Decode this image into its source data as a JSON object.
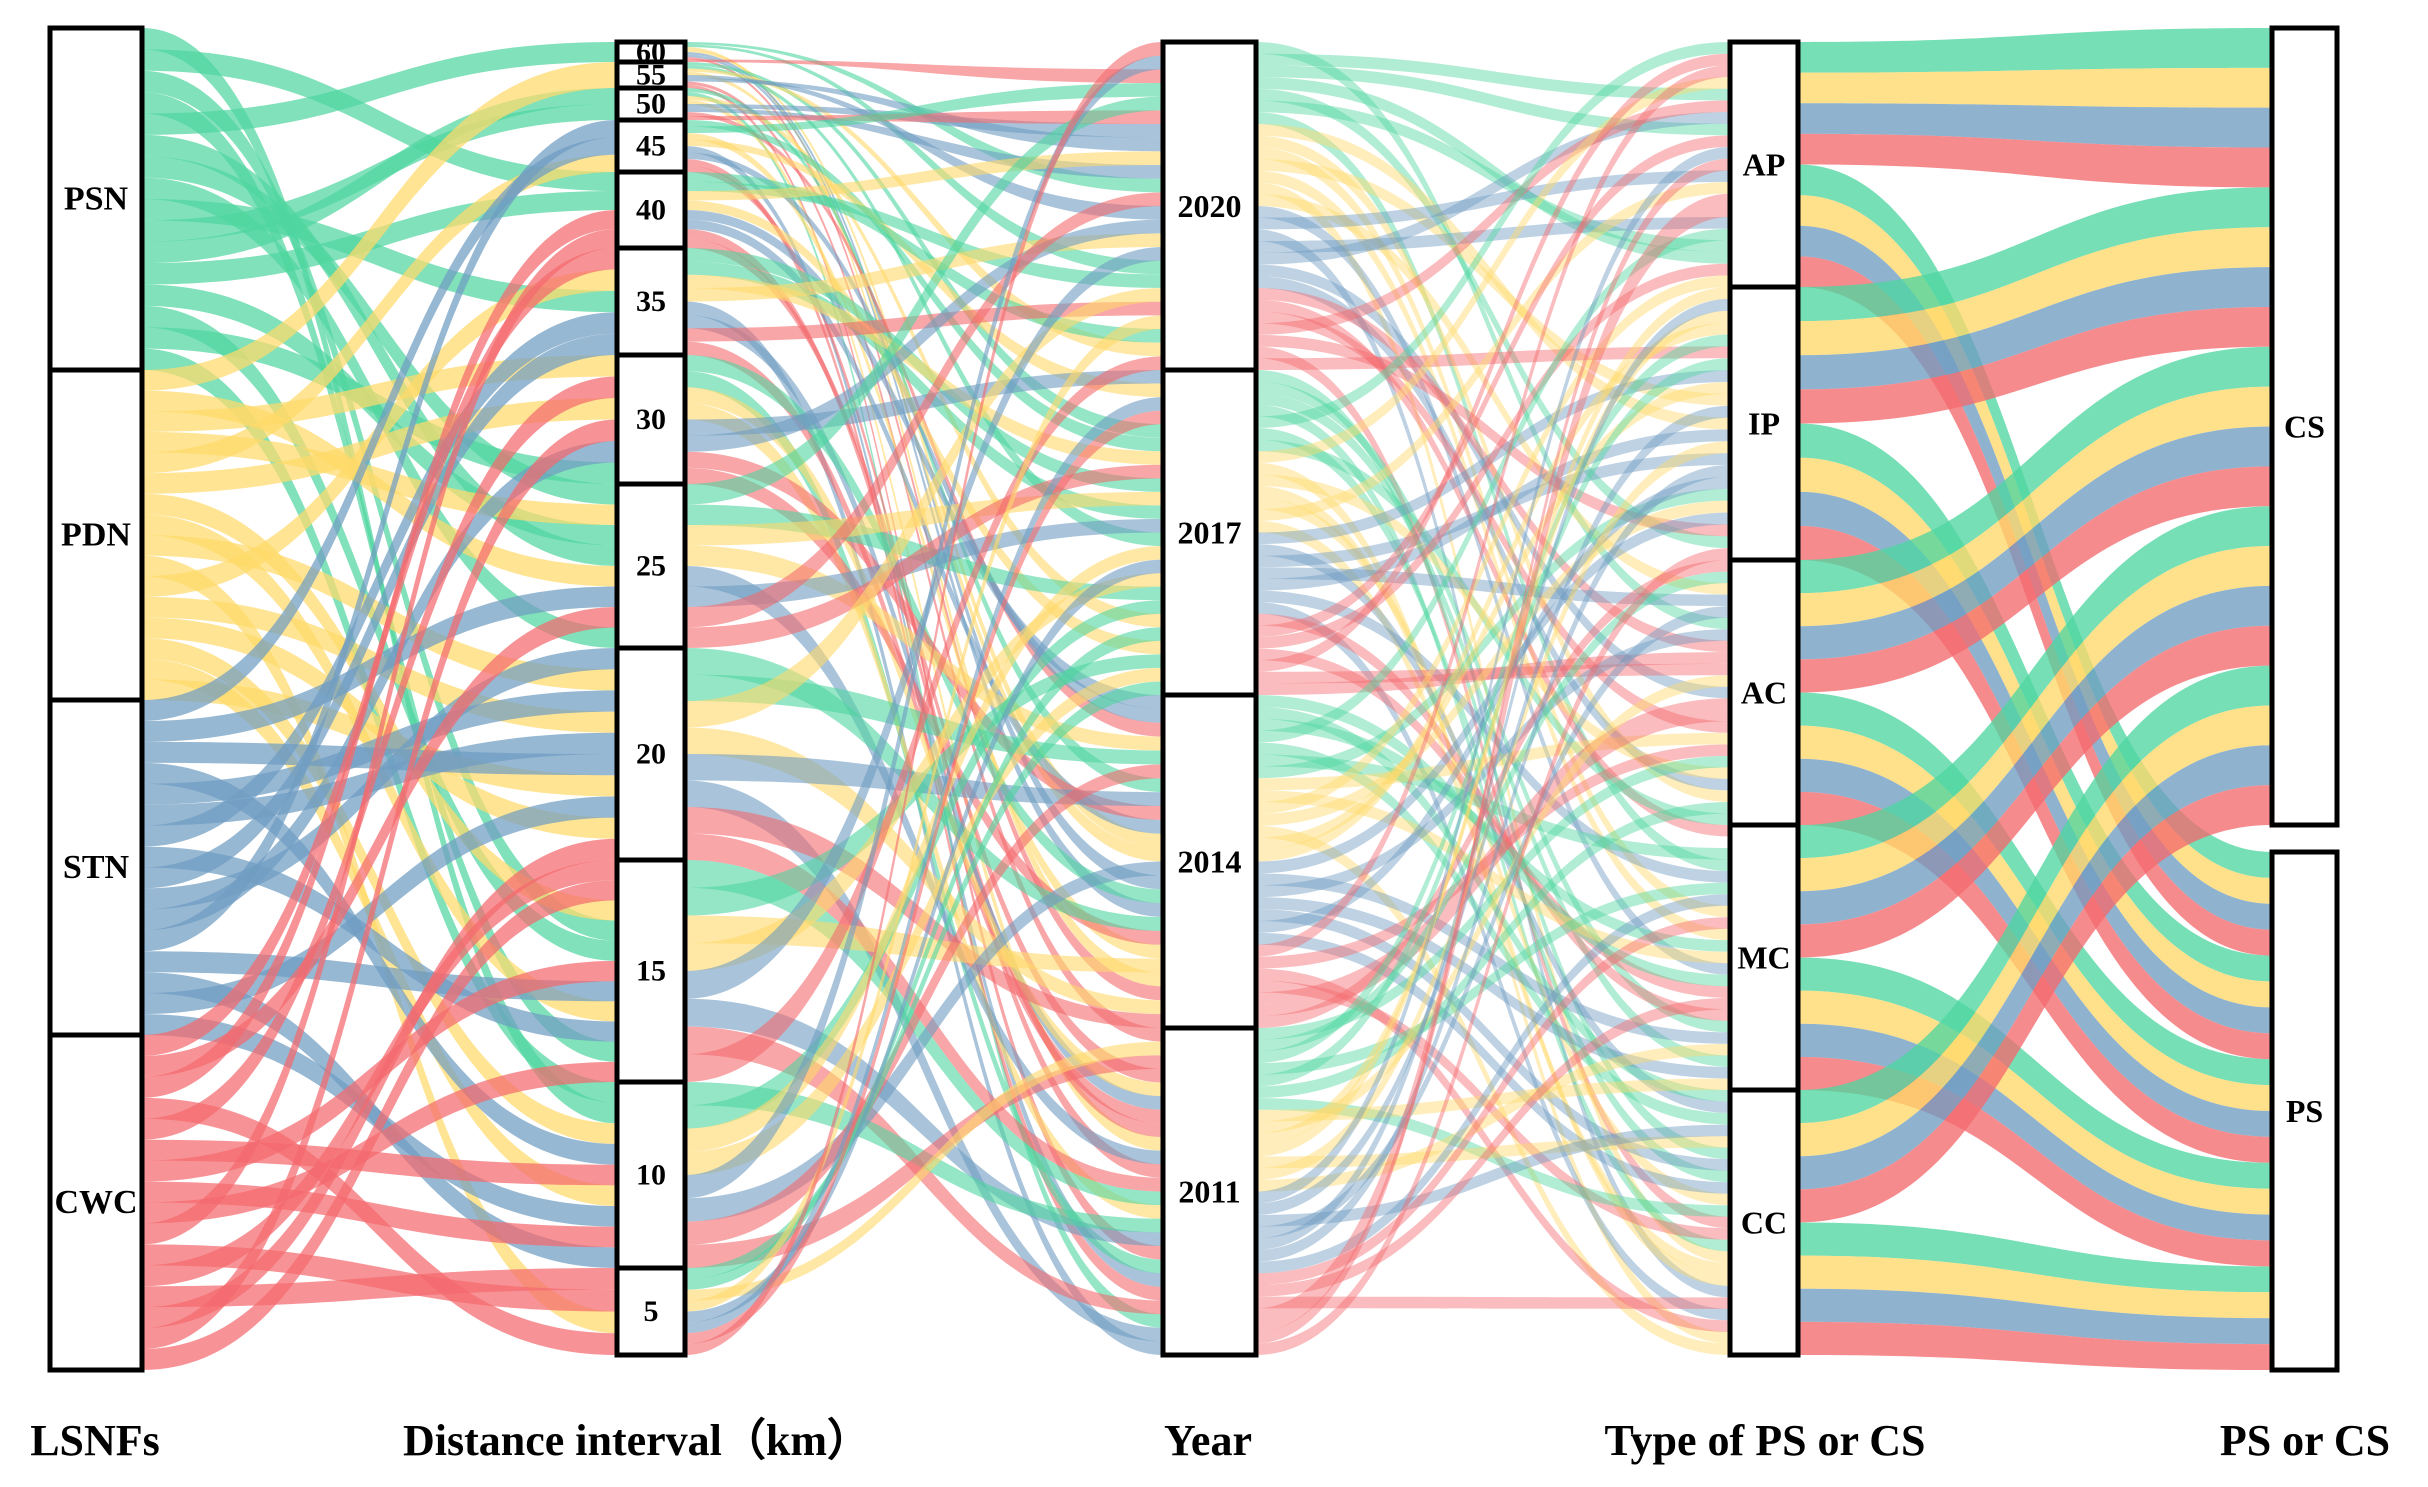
{
  "flow_colors": {
    "green": "#4fd6a0",
    "yellow": "#ffd96a",
    "blue": "#6f9cc2",
    "red": "#f46a6e"
  },
  "columns": [
    {
      "id": "lsnf",
      "title": "LSNFs",
      "nodes": [
        {
          "id": "PSN",
          "label": "PSN"
        },
        {
          "id": "PDN",
          "label": "PDN"
        },
        {
          "id": "STN",
          "label": "STN"
        },
        {
          "id": "CWC",
          "label": "CWC"
        }
      ]
    },
    {
      "id": "dist",
      "title": "Distance interval（km）",
      "nodes": [
        {
          "id": "d60",
          "label": "60"
        },
        {
          "id": "d55",
          "label": "55"
        },
        {
          "id": "d50",
          "label": "50"
        },
        {
          "id": "d45",
          "label": "45"
        },
        {
          "id": "d40",
          "label": "40"
        },
        {
          "id": "d35",
          "label": "35"
        },
        {
          "id": "d30",
          "label": "30"
        },
        {
          "id": "d25",
          "label": "25"
        },
        {
          "id": "d20",
          "label": "20"
        },
        {
          "id": "d15",
          "label": "15"
        },
        {
          "id": "d10",
          "label": "10"
        },
        {
          "id": "d5",
          "label": "5"
        }
      ]
    },
    {
      "id": "year",
      "title": "Year",
      "nodes": [
        {
          "id": "y2020",
          "label": "2020"
        },
        {
          "id": "y2017",
          "label": "2017"
        },
        {
          "id": "y2014",
          "label": "2014"
        },
        {
          "id": "y2011",
          "label": "2011"
        }
      ]
    },
    {
      "id": "type",
      "title": "Type of PS or CS",
      "nodes": [
        {
          "id": "AP",
          "label": "AP"
        },
        {
          "id": "IP",
          "label": "IP"
        },
        {
          "id": "AC",
          "label": "AC"
        },
        {
          "id": "MC",
          "label": "MC"
        },
        {
          "id": "CC",
          "label": "CC"
        }
      ]
    },
    {
      "id": "pscs",
      "title": "PS or CS",
      "nodes": [
        {
          "id": "CS",
          "label": "CS"
        },
        {
          "id": "PS",
          "label": "PS"
        }
      ]
    }
  ]
}
